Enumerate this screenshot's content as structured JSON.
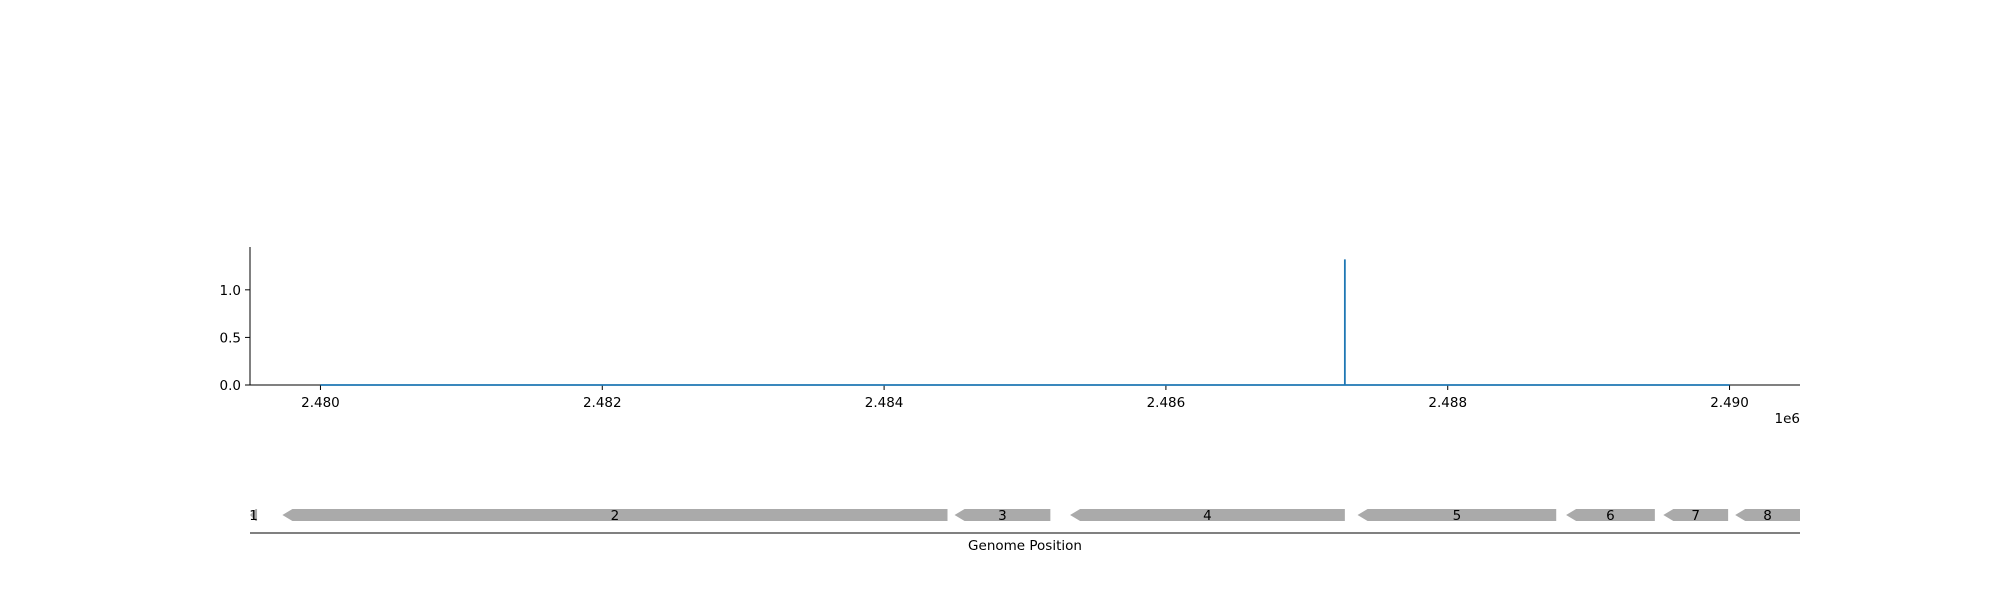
{
  "chart_data": [
    {
      "type": "line",
      "title": "",
      "xlabel": "",
      "ylabel": "",
      "x_offset_label": "1e6",
      "xlim": [
        2.4795,
        2.4905
      ],
      "ylim": [
        0,
        1.45
      ],
      "x_ticks": [
        2.48,
        2.482,
        2.484,
        2.486,
        2.488,
        2.49
      ],
      "x_tick_labels": [
        "2.480",
        "2.482",
        "2.484",
        "2.486",
        "2.488",
        "2.490"
      ],
      "y_ticks": [
        0,
        0.5,
        1.0
      ],
      "y_tick_labels": [
        "0.0",
        "0.5",
        "1.0"
      ],
      "grid": false,
      "color": "#1f77b4",
      "series": [
        {
          "x": [
            2.48,
            2.48727,
            2.48727,
            2.48727,
            2.49
          ],
          "y": [
            0,
            0,
            1.32,
            0,
            0
          ]
        }
      ]
    },
    {
      "type": "gene_track",
      "xlabel": "Genome Position",
      "xlim": [
        2.4795,
        2.4905
      ],
      "color": "#aaaaaa",
      "genes": [
        {
          "label": "1",
          "start": 2.4795,
          "end": 2.47955,
          "strand": "-"
        },
        {
          "label": "2",
          "start": 2.47973,
          "end": 2.48445,
          "strand": "-"
        },
        {
          "label": "3",
          "start": 2.4845,
          "end": 2.48518,
          "strand": "-"
        },
        {
          "label": "4",
          "start": 2.48532,
          "end": 2.48727,
          "strand": "-"
        },
        {
          "label": "5",
          "start": 2.48736,
          "end": 2.48877,
          "strand": "-"
        },
        {
          "label": "6",
          "start": 2.48884,
          "end": 2.48947,
          "strand": "-"
        },
        {
          "label": "7",
          "start": 2.48953,
          "end": 2.48999,
          "strand": "-"
        },
        {
          "label": "8",
          "start": 2.49004,
          "end": 2.4905,
          "strand": "-"
        }
      ]
    }
  ]
}
